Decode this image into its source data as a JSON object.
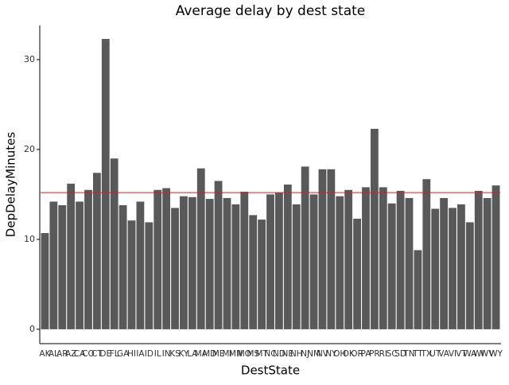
{
  "chart_data": {
    "type": "bar",
    "title": "Average delay by dest state",
    "x_label": "DestState",
    "y_label": "DepDelayMinutes",
    "categories": [
      "AK",
      "AL",
      "AR",
      "AZ",
      "CA",
      "CO",
      "CT",
      "DE",
      "FL",
      "GA",
      "HI",
      "IA",
      "ID",
      "IL",
      "IN",
      "KS",
      "KY",
      "LA",
      "MA",
      "MD",
      "ME",
      "MI",
      "MN",
      "MO",
      "MS",
      "MT",
      "NC",
      "ND",
      "NE",
      "NH",
      "NJ",
      "NM",
      "NV",
      "NY",
      "OH",
      "OK",
      "OR",
      "PA",
      "PR",
      "RI",
      "SC",
      "SD",
      "TN",
      "TT",
      "TX",
      "UT",
      "VA",
      "VI",
      "VT",
      "WA",
      "WI",
      "WV",
      "WY"
    ],
    "values": [
      10.7,
      14.2,
      13.8,
      16.2,
      14.2,
      15.5,
      17.4,
      32.3,
      19.0,
      13.8,
      12.1,
      14.2,
      11.9,
      15.5,
      15.7,
      13.5,
      14.8,
      14.7,
      17.9,
      14.5,
      16.5,
      14.6,
      13.9,
      15.3,
      12.7,
      12.2,
      15.0,
      15.2,
      16.1,
      13.9,
      18.1,
      15.0,
      17.8,
      17.8,
      14.8,
      15.5,
      12.3,
      15.8,
      22.3,
      15.8,
      14.0,
      15.4,
      14.6,
      8.8,
      16.7,
      13.4,
      14.6,
      13.5,
      13.9,
      11.9,
      15.4,
      14.6,
      16.0
    ],
    "color": "#595959",
    "hline": 15.2,
    "hline_color": "#e41a1c",
    "ylim": [
      -1.6,
      33.8
    ],
    "yticks": [
      0,
      10,
      20,
      30
    ],
    "grid": false
  }
}
